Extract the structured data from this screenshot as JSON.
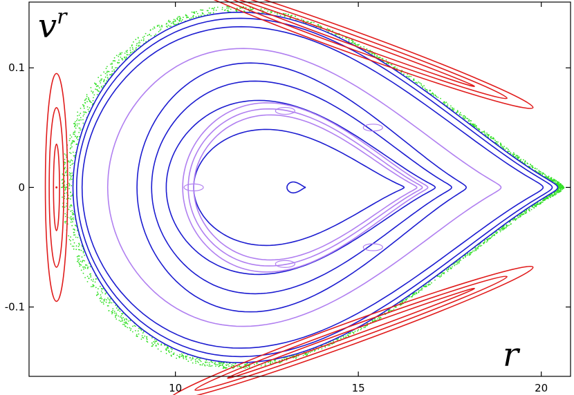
{
  "chart_data": {
    "type": "scatter",
    "title": "",
    "xlabel": "r",
    "ylabel": "v",
    "ylabel_superscript": "r",
    "xlim": [
      6.0,
      20.8
    ],
    "ylim": [
      -0.158,
      0.155
    ],
    "xticks": [
      10,
      15,
      20
    ],
    "yticks": [
      0.1,
      0,
      -0.1
    ],
    "xtick_labels": [
      "10",
      "15",
      "20"
    ],
    "ytick_labels": [
      "0.1",
      "0",
      "-0.1"
    ],
    "grid": false,
    "legend": "none",
    "colors": {
      "regular": "#1b1bd0",
      "resonant_islands": "#b07ff0",
      "outer_islands": "#e01b1b",
      "chaotic": "#33e026"
    },
    "series": [
      {
        "kind": "regular",
        "color": "#1b1bd0",
        "curves": [
          {
            "r_min": 13.05,
            "r_max": 13.55,
            "v_max": 0.0045
          },
          {
            "r_min": 10.5,
            "r_max": 16.25,
            "v_max": 0.048
          },
          {
            "r_min": 9.75,
            "r_max": 17.1,
            "v_max": 0.072
          },
          {
            "r_min": 9.35,
            "r_max": 17.55,
            "v_max": 0.088
          },
          {
            "r_min": 8.95,
            "r_max": 17.95,
            "v_max": 0.103
          },
          {
            "r_min": 7.45,
            "r_max": 20.05,
            "v_max": 0.133
          },
          {
            "r_min": 7.3,
            "r_max": 20.3,
            "v_max": 0.14
          },
          {
            "r_min": 7.2,
            "r_max": 20.45,
            "v_max": 0.145
          }
        ]
      },
      {
        "kind": "resonant_islands",
        "color": "#b07ff0",
        "curves": [
          {
            "r_min": 10.2,
            "r_max": 16.9,
            "v_max": 0.07
          },
          {
            "r_min": 10.35,
            "r_max": 16.75,
            "v_max": 0.065
          },
          {
            "r_min": 10.5,
            "r_max": 16.6,
            "v_max": 0.06
          },
          {
            "r_min": 8.15,
            "r_max": 18.9,
            "v_max": 0.115
          }
        ]
      },
      {
        "kind": "outer_islands",
        "color": "#e01b1b",
        "island_centers": [
          {
            "r": 6.75,
            "v": 0.0
          },
          {
            "r": 14.8,
            "v": 0.122
          },
          {
            "r": 14.8,
            "v": -0.122
          }
        ]
      },
      {
        "kind": "chaotic",
        "color": "#33e026",
        "note_points": 2200
      }
    ]
  }
}
